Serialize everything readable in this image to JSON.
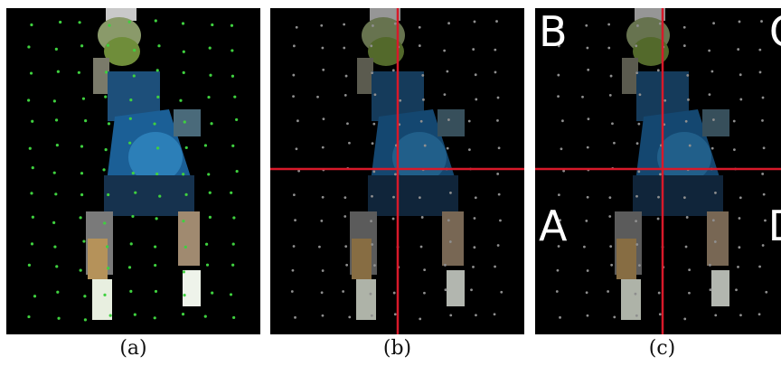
{
  "panels": [
    {
      "id": "a",
      "caption": "(a)"
    },
    {
      "id": "b",
      "caption": "(b)"
    },
    {
      "id": "c",
      "caption": "(c)"
    }
  ],
  "quadrants": {
    "top_left": "B",
    "top_right": "C",
    "bottom_left": "A",
    "bottom_right": "D"
  },
  "colors": {
    "background": "#000000",
    "grid_points_a": "#3fd13f",
    "grid_points_bc": "#8f8f8f",
    "divider_lines": "#d8192a",
    "quadrant_labels": "#ffffff"
  }
}
